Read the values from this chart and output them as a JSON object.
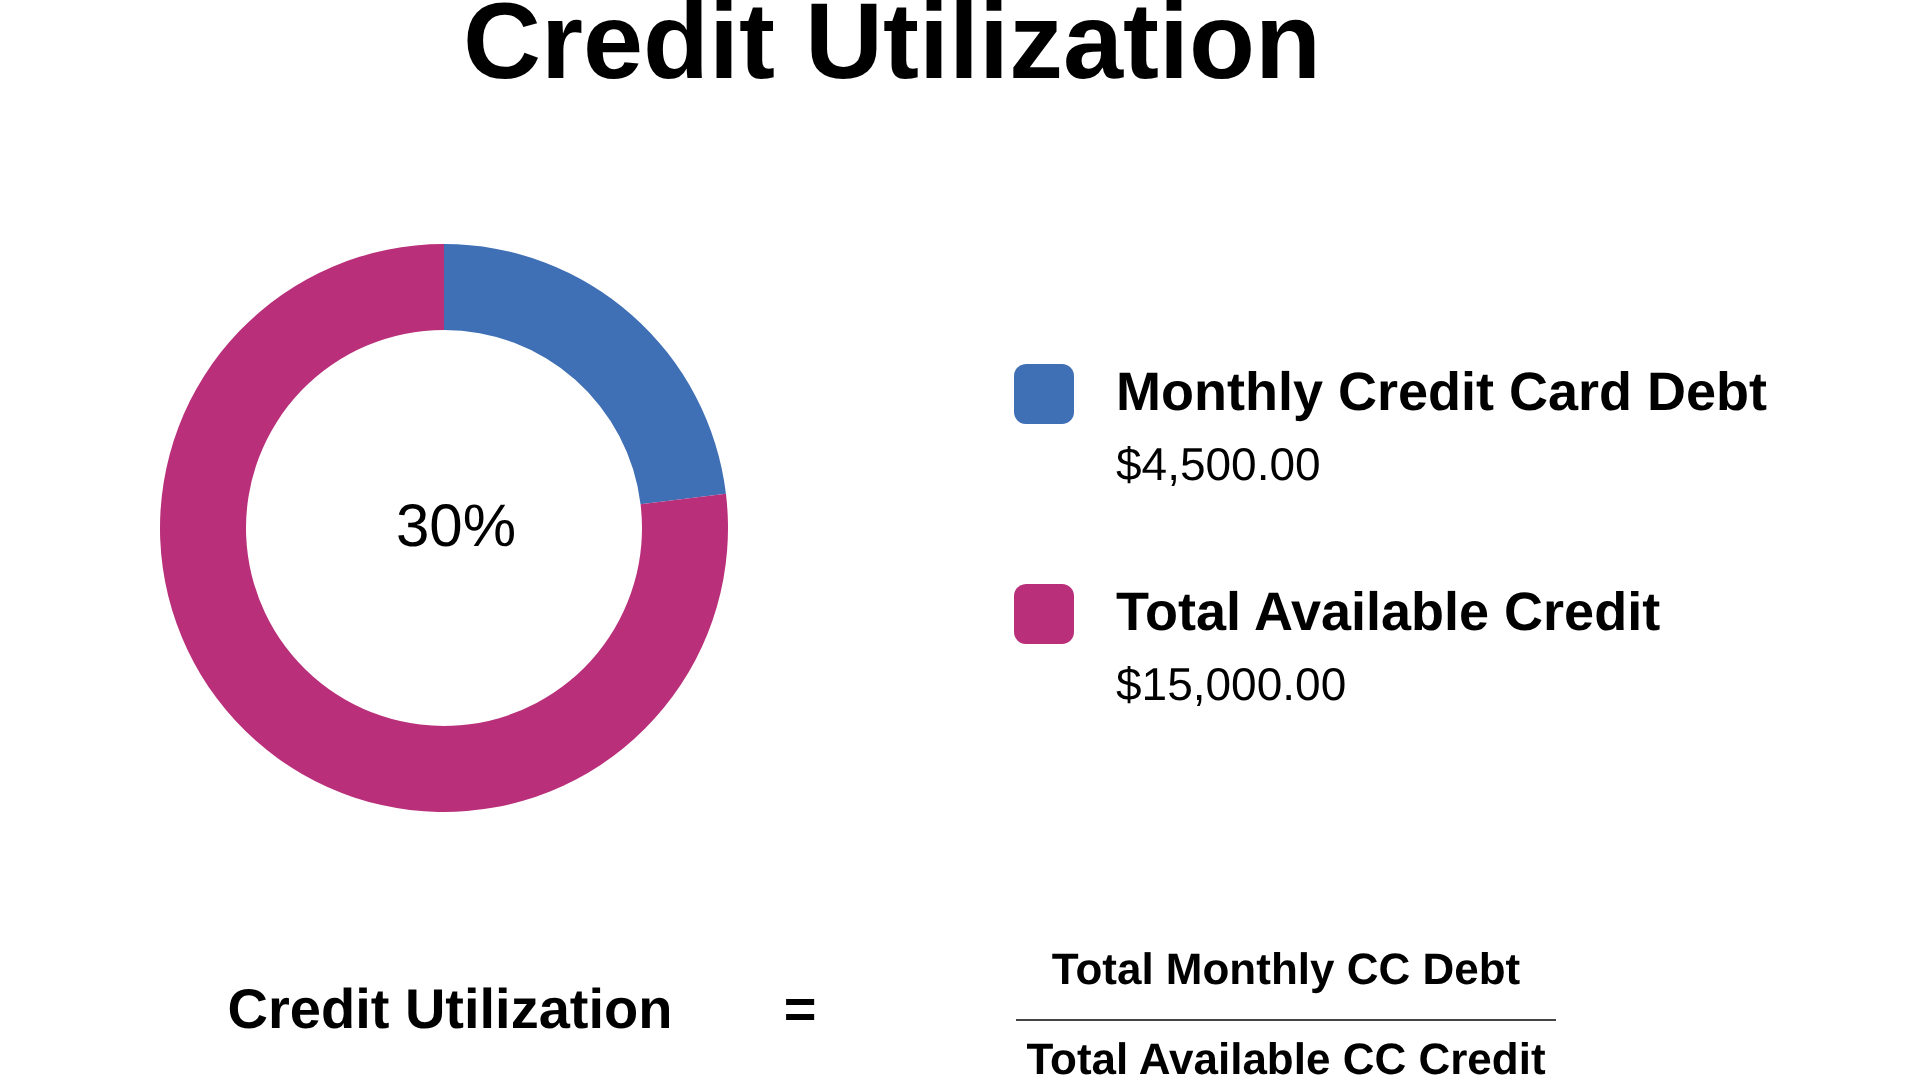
{
  "chart_data": {
    "type": "donut",
    "title": "Credit Utilization",
    "categories": [
      "Monthly Credit Card Debt",
      "Total Available Credit"
    ],
    "values": [
      4500,
      15000
    ],
    "colors": [
      "#3f6fb4",
      "#b92f7a"
    ],
    "value_labels": [
      "$4,500.00",
      "$15,000.00"
    ],
    "legend": "right",
    "annotations": [
      "30%",
      "Credit Utilization",
      "=",
      "Total Monthly CC Debt",
      "Total Available CC Credit"
    ]
  }
}
